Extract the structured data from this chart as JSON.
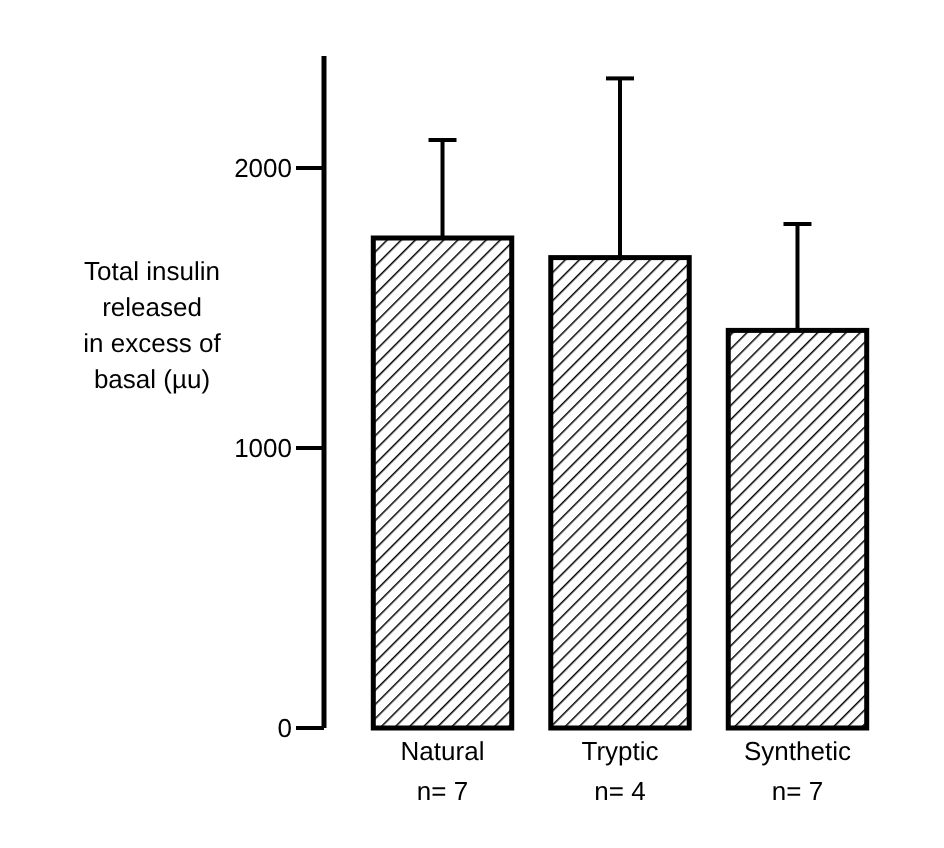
{
  "chart_data": {
    "type": "bar",
    "ylabel": "Total insulin\nreleased\nin excess of\nbasal (µu)",
    "categories": [
      "Natural\nn= 7",
      "Tryptic\nn= 4",
      "Synthetic\nn= 7"
    ],
    "values": [
      1750,
      1680,
      1420
    ],
    "errors": [
      [
        1750,
        2100
      ],
      [
        1680,
        2320
      ],
      [
        1420,
        1800
      ]
    ],
    "color": "#000000",
    "ylim": [
      0,
      2400
    ],
    "yticks": [
      0,
      1000,
      2000
    ],
    "grid": false
  }
}
